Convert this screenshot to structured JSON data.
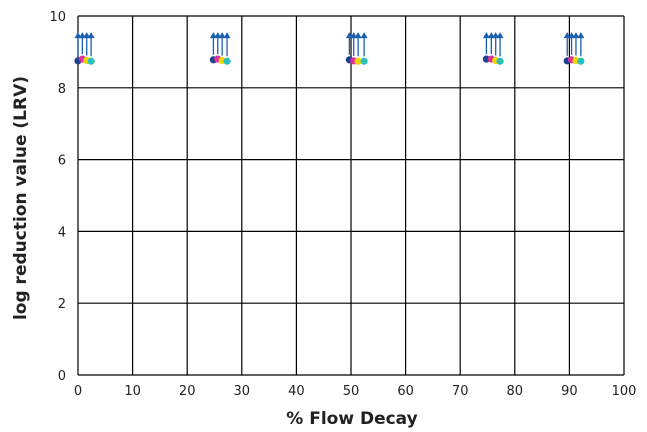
{
  "chart_data": {
    "type": "scatter",
    "title": "",
    "xlabel": "% Flow Decay",
    "ylabel": "log reduction value (LRV)",
    "xlim": [
      0,
      100
    ],
    "ylim": [
      0,
      10
    ],
    "xticks": [
      0,
      10,
      20,
      30,
      40,
      50,
      60,
      70,
      80,
      90,
      100
    ],
    "yticks": [
      0,
      2,
      4,
      6,
      8,
      10
    ],
    "grid": true,
    "legend": "none",
    "marker_note": "arrows indicate values greater than plotted (detection limit)",
    "series": [
      {
        "color": "#1f3f93",
        "marker": "circle",
        "lower_bound": true,
        "x": [
          0.0,
          24.8,
          49.7,
          74.8,
          89.6
        ],
        "y": [
          8.75,
          8.78,
          8.78,
          8.8,
          8.75
        ]
      },
      {
        "color": "#e0309a",
        "marker": "circle",
        "lower_bound": true,
        "x": [
          0.8,
          25.6,
          50.5,
          75.7,
          90.4
        ],
        "y": [
          8.8,
          8.8,
          8.75,
          8.8,
          8.78
        ]
      },
      {
        "color": "#f1d400",
        "marker": "circle",
        "lower_bound": true,
        "x": [
          1.6,
          26.4,
          51.3,
          76.5,
          91.2
        ],
        "y": [
          8.76,
          8.76,
          8.74,
          8.76,
          8.76
        ]
      },
      {
        "color": "#2bbfc0",
        "marker": "circle",
        "lower_bound": true,
        "x": [
          2.4,
          27.3,
          52.4,
          77.3,
          92.1
        ],
        "y": [
          8.74,
          8.74,
          8.74,
          8.74,
          8.74
        ]
      }
    ],
    "arrow_color": "#1a5fb0"
  }
}
